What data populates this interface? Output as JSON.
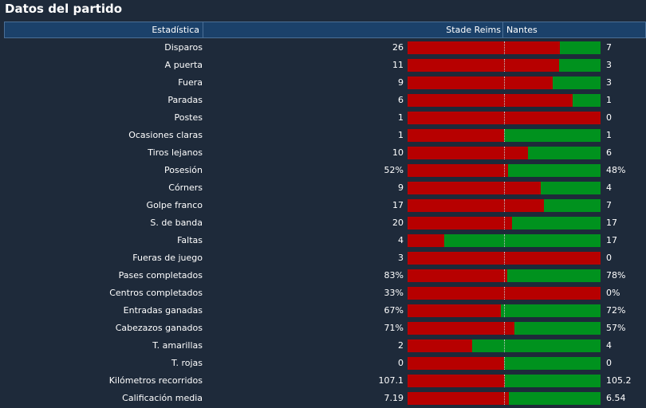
{
  "page_title": "Datos del partido",
  "columns": {
    "stat": "Estadística",
    "home": "Stade Reims",
    "away": "Nantes"
  },
  "colors": {
    "home_bar": "#b70000",
    "away_bar": "#00921e",
    "header": "#1b416a",
    "background": "#1e2a3a"
  },
  "rows": [
    {
      "label": "Disparos",
      "home": "26",
      "away": "7",
      "home_share": 0.788
    },
    {
      "label": "A puerta",
      "home": "11",
      "away": "3",
      "home_share": 0.786
    },
    {
      "label": "Fuera",
      "home": "9",
      "away": "3",
      "home_share": 0.75
    },
    {
      "label": "Paradas",
      "home": "6",
      "away": "1",
      "home_share": 0.857
    },
    {
      "label": "Postes",
      "home": "1",
      "away": "0",
      "home_share": 1.0
    },
    {
      "label": "Ocasiones claras",
      "home": "1",
      "away": "1",
      "home_share": 0.5
    },
    {
      "label": "Tiros lejanos",
      "home": "10",
      "away": "6",
      "home_share": 0.625
    },
    {
      "label": "Posesión",
      "home": "52%",
      "away": "48%",
      "home_share": 0.52
    },
    {
      "label": "Córners",
      "home": "9",
      "away": "4",
      "home_share": 0.692
    },
    {
      "label": "Golpe franco",
      "home": "17",
      "away": "7",
      "home_share": 0.708
    },
    {
      "label": "S. de banda",
      "home": "20",
      "away": "17",
      "home_share": 0.541
    },
    {
      "label": "Faltas",
      "home": "4",
      "away": "17",
      "home_share": 0.19
    },
    {
      "label": "Fueras de juego",
      "home": "3",
      "away": "0",
      "home_share": 1.0
    },
    {
      "label": "Pases completados",
      "home": "83%",
      "away": "78%",
      "home_share": 0.516
    },
    {
      "label": "Centros completados",
      "home": "33%",
      "away": "0%",
      "home_share": 1.0
    },
    {
      "label": "Entradas ganadas",
      "home": "67%",
      "away": "72%",
      "home_share": 0.482
    },
    {
      "label": "Cabezazos ganados",
      "home": "71%",
      "away": "57%",
      "home_share": 0.555
    },
    {
      "label": "T. amarillas",
      "home": "2",
      "away": "4",
      "home_share": 0.333
    },
    {
      "label": "T. rojas",
      "home": "0",
      "away": "0",
      "home_share": 0.5
    },
    {
      "label": "Kilómetros recorridos",
      "home": "107.1",
      "away": "105.2",
      "home_share": 0.504
    },
    {
      "label": "Calificación media",
      "home": "7.19",
      "away": "6.54",
      "home_share": 0.524
    }
  ]
}
